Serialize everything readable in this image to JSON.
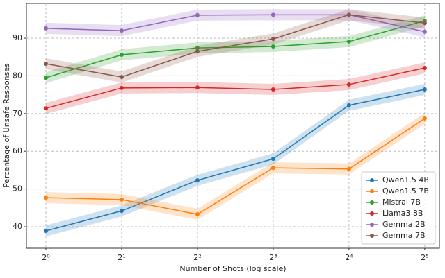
{
  "chart_data": {
    "type": "line",
    "xlabel": "Number of Shots (log scale)",
    "ylabel": "Percentage of Unsafe Responses",
    "x": [
      1,
      2,
      4,
      8,
      16,
      32
    ],
    "xscale": "log2",
    "xlim": [
      0.837,
      36.6
    ],
    "xticks": [
      {
        "value": 1,
        "label": "2⁰"
      },
      {
        "value": 2,
        "label": "2¹"
      },
      {
        "value": 4,
        "label": "2²"
      },
      {
        "value": 8,
        "label": "2³"
      },
      {
        "value": 16,
        "label": "2⁴"
      },
      {
        "value": 32,
        "label": "2⁵"
      }
    ],
    "ylim": [
      34.3,
      99.2
    ],
    "yticks": [
      40,
      50,
      60,
      70,
      80,
      90
    ],
    "grid": true,
    "legend": "lower right",
    "series": [
      {
        "name": "Qwen1.5 4B",
        "color": "#1f77b4",
        "values": [
          38.9,
          44.2,
          52.3,
          58.0,
          72.2,
          76.4
        ]
      },
      {
        "name": "Qwen1.5 7B",
        "color": "#ff7f0e",
        "values": [
          47.7,
          47.2,
          43.3,
          55.6,
          55.3,
          68.7
        ]
      },
      {
        "name": "Mistral 7B",
        "color": "#2ca02c",
        "values": [
          79.5,
          85.6,
          87.4,
          87.8,
          89.1,
          94.6
        ]
      },
      {
        "name": "Llama3 8B",
        "color": "#d62728",
        "values": [
          71.4,
          76.8,
          76.9,
          76.4,
          77.7,
          82.1
        ]
      },
      {
        "name": "Gemma 2B",
        "color": "#9467bd",
        "values": [
          92.6,
          92.0,
          96.1,
          96.2,
          96.2,
          91.7
        ]
      },
      {
        "name": "Gemma 7B",
        "color": "#8c564b",
        "values": [
          83.2,
          79.7,
          86.5,
          89.8,
          96.2,
          94.0
        ]
      }
    ]
  }
}
